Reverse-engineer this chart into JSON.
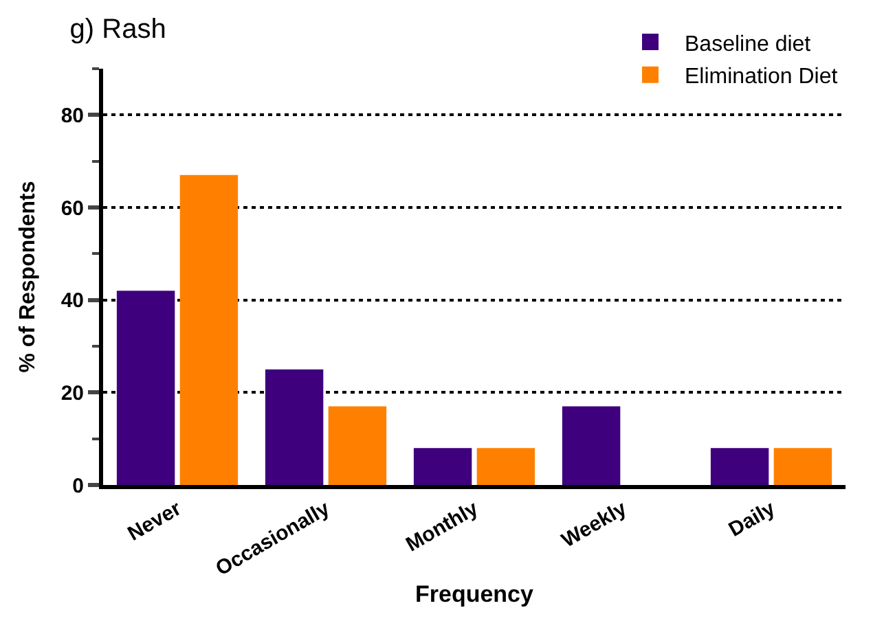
{
  "chart_data": {
    "type": "bar",
    "title": "g) Rash",
    "xlabel": "Frequency",
    "ylabel": "% of Respondents",
    "categories": [
      "Never",
      "Occasionally",
      "Monthly",
      "Weekly",
      "Daily"
    ],
    "series": [
      {
        "name": "Baseline diet",
        "color": "#3f007d",
        "values": [
          42,
          25,
          8,
          17,
          8
        ]
      },
      {
        "name": "Elimination Diet",
        "color": "#ff8000",
        "values": [
          67,
          17,
          8,
          0,
          8
        ]
      }
    ],
    "ylim": [
      0,
      90
    ],
    "yticks": [
      0,
      {
        "value": 10,
        "label": null
      },
      20,
      {
        "value": 30,
        "label": null
      },
      40,
      {
        "value": 50,
        "label": null
      },
      60,
      {
        "value": 70,
        "label": null
      },
      80,
      {
        "value": 90,
        "label": null
      }
    ],
    "grid": "y",
    "legend": "top right"
  }
}
